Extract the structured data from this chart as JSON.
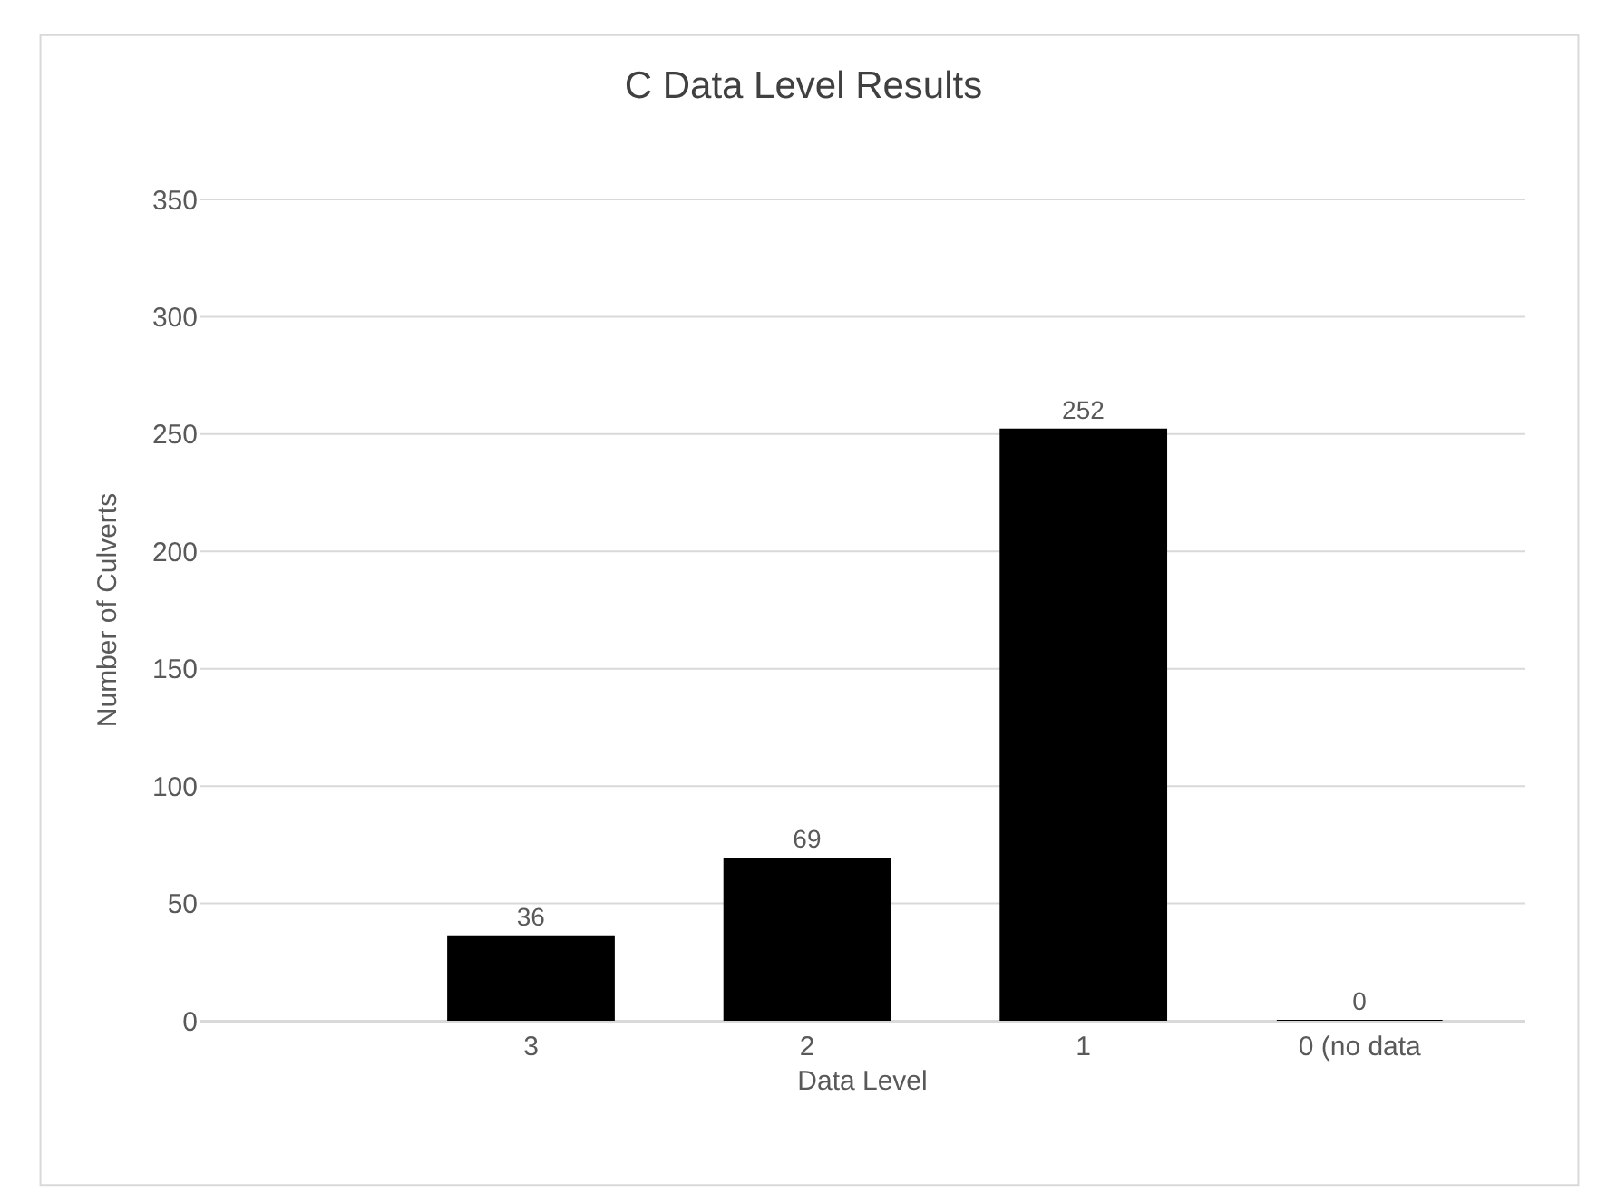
{
  "chart_data": {
    "type": "bar",
    "title": "C Data Level Results",
    "xlabel": "Data Level",
    "ylabel": "Number of Culverts",
    "categories": [
      "3",
      "2",
      "1",
      "0 (no data"
    ],
    "values": [
      36,
      69,
      252,
      0
    ],
    "color": "#000000",
    "ylim": [
      0,
      350
    ],
    "yticks": [
      0,
      50,
      100,
      150,
      200,
      250,
      300,
      350
    ],
    "grid": "y",
    "data_labels": true
  }
}
